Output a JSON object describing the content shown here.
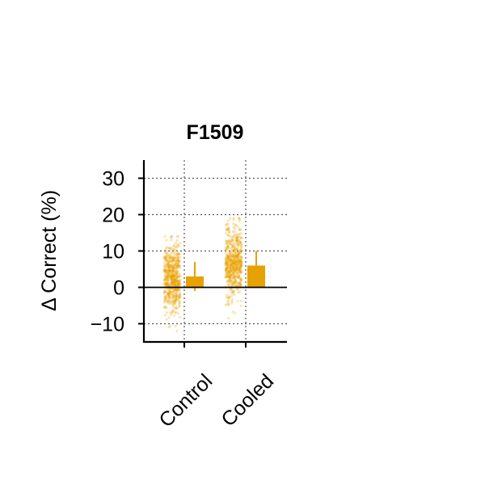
{
  "chart_data": {
    "type": "bar",
    "title": "F1509",
    "xlabel": "",
    "ylabel": "Δ Correct (%)",
    "categories": [
      "Control",
      "Cooled"
    ],
    "ylim": [
      -15,
      35
    ],
    "yticks": [
      -10,
      0,
      10,
      20,
      30
    ],
    "grid": true,
    "bar_color": "#E8A200",
    "series": [
      {
        "values": [
          3.0,
          6.0
        ],
        "error_upper": [
          7.0,
          10.0
        ],
        "error_lower": [
          -1.0,
          2.0
        ]
      }
    ],
    "scatter_spread": [
      {
        "center": 2.5,
        "sd": 4.5,
        "min": -12.0,
        "max": 14.0,
        "n": 600
      },
      {
        "center": 6.5,
        "sd": 4.8,
        "min": -8.5,
        "max": 19.0,
        "n": 600
      }
    ]
  }
}
